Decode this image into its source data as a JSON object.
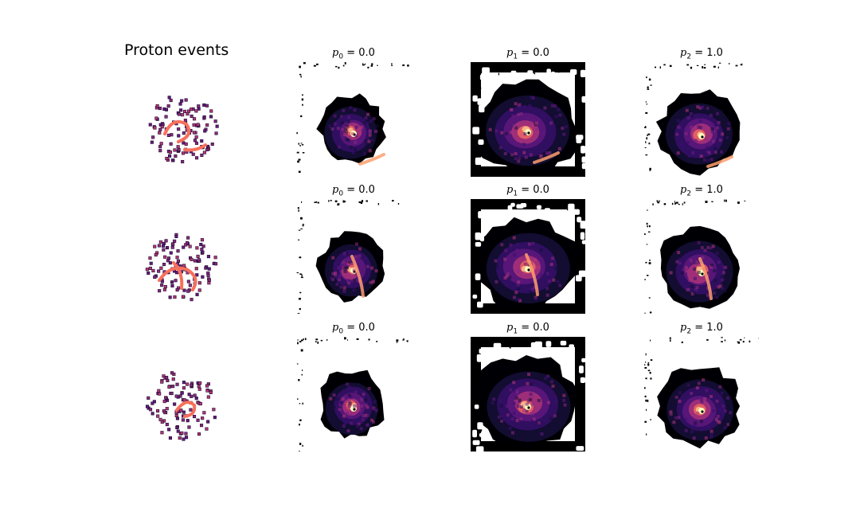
{
  "figure": {
    "title": "Proton events"
  },
  "colormap": [
    "#000004",
    "#140e36",
    "#3b0f70",
    "#641a80",
    "#8c2981",
    "#b73779",
    "#de4968",
    "#f7705c",
    "#fe9f6d",
    "#fecf92",
    "#fcfdbf"
  ],
  "rows": [
    {
      "event_icon": "proton-event-scatter",
      "panels": [
        {
          "label_var": "p",
          "label_sub": "0",
          "label_value": "= 0.0",
          "probability": 0.0
        },
        {
          "label_var": "p",
          "label_sub": "1",
          "label_value": "= 0.0",
          "probability": 0.0
        },
        {
          "label_var": "p",
          "label_sub": "2",
          "label_value": "= 1.0",
          "probability": 1.0
        }
      ]
    },
    {
      "event_icon": "proton-event-scatter",
      "panels": [
        {
          "label_var": "p",
          "label_sub": "0",
          "label_value": "= 0.0",
          "probability": 0.0
        },
        {
          "label_var": "p",
          "label_sub": "1",
          "label_value": "= 0.0",
          "probability": 0.0
        },
        {
          "label_var": "p",
          "label_sub": "2",
          "label_value": "= 1.0",
          "probability": 1.0
        }
      ]
    },
    {
      "event_icon": "proton-event-scatter",
      "panels": [
        {
          "label_var": "p",
          "label_sub": "0",
          "label_value": "= 0.0",
          "probability": 0.0
        },
        {
          "label_var": "p",
          "label_sub": "1",
          "label_value": "= 0.0",
          "probability": 0.0
        },
        {
          "label_var": "p",
          "label_sub": "2",
          "label_value": "= 1.0",
          "probability": 1.0
        }
      ]
    }
  ]
}
